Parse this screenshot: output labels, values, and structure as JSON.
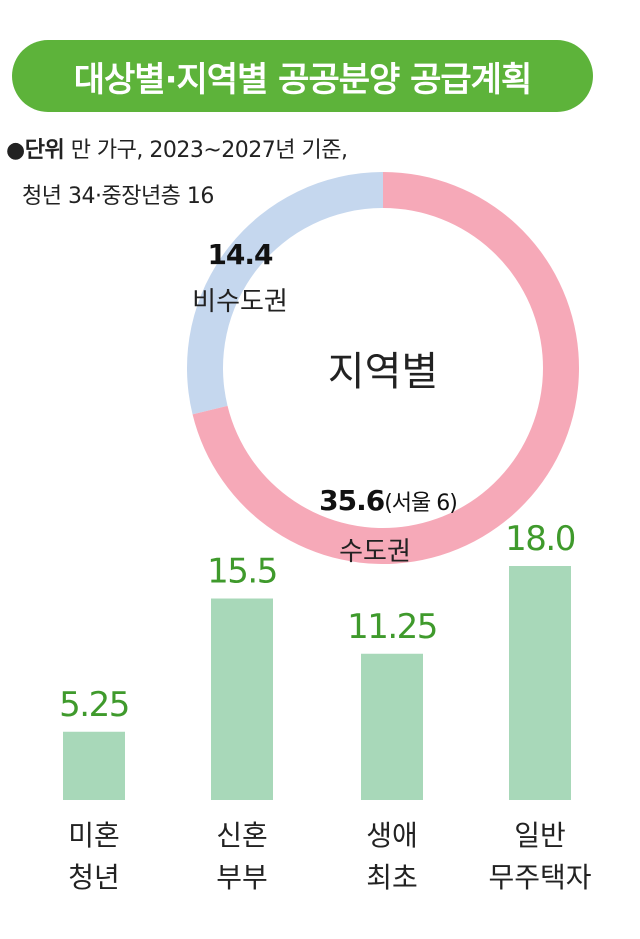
{
  "header": {
    "title": "대상별·지역별 공공분양 공급계획"
  },
  "unit_note": {
    "bullet": "●",
    "label": "단위",
    "line1": "만 가구, 2023~2027년 기준,",
    "line2": "청년 34·중장년층 16"
  },
  "chart_data": [
    {
      "type": "pie",
      "title": "지역별",
      "slices": [
        {
          "name": "비수도권",
          "value": 14.4,
          "color": "#c5d7ee",
          "value_label": "14.4"
        },
        {
          "name": "수도권",
          "value": 35.6,
          "color": "#f6a9b8",
          "value_label": "35.6",
          "note": "(서울 6)"
        }
      ]
    },
    {
      "type": "bar",
      "categories": [
        [
          "미혼",
          "청년"
        ],
        [
          "신혼",
          "부부"
        ],
        [
          "생애",
          "최초"
        ],
        [
          "일반",
          "무주택자"
        ]
      ],
      "values": [
        5.25,
        15.5,
        11.25,
        18.0
      ],
      "value_labels": [
        "5.25",
        "15.5",
        "11.25",
        "18.0"
      ],
      "bar_color": "#a8d8b9",
      "value_label_color": "#3f9a2c"
    }
  ]
}
